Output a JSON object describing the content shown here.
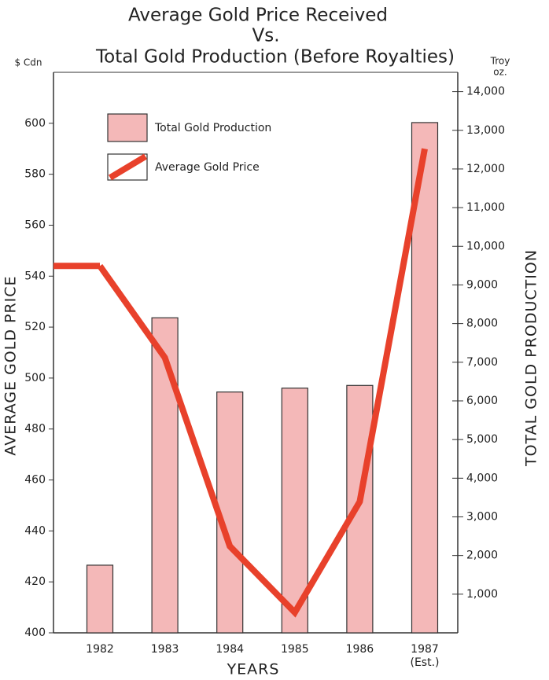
{
  "chart_data": {
    "type": "bar_line",
    "title": [
      "Average Gold Price Received",
      "Vs.",
      "Total Gold Production (Before Royalties)"
    ],
    "y_label": "AVERAGE GOLD PRICE",
    "y_unit": "$ Cdn",
    "y2_label": "TOTAL GOLD PRODUCTION",
    "y2_unit": [
      "Troy",
      "oz."
    ],
    "x_label": "YEARS",
    "categories": [
      "1982",
      "1983",
      "1984",
      "1985",
      "1986",
      "1987"
    ],
    "annotations": [
      {
        "category": 5,
        "text": "(Est.)"
      }
    ],
    "series": [
      {
        "name": "Total Gold Production",
        "kind": "bar",
        "axis": "y2",
        "color": "#f4b8b8",
        "values": [
          1750,
          8150,
          6230,
          6330,
          6400,
          13200
        ]
      },
      {
        "name": "Average Gold Price",
        "kind": "line",
        "axis": "y",
        "color": "#e8412b",
        "values": [
          544,
          508,
          434,
          408,
          451.5,
          590
        ]
      }
    ],
    "ylim": [
      400,
      620
    ],
    "yticks": [
      400,
      420,
      440,
      460,
      480,
      500,
      520,
      540,
      560,
      580,
      600
    ],
    "y2lim": [
      0,
      14500
    ],
    "y2ticks": [
      {
        "value": 1000,
        "label": "1,000"
      },
      {
        "value": 2000,
        "label": "2,000"
      },
      {
        "value": 3000,
        "label": "3,000"
      },
      {
        "value": 4000,
        "label": "4,000"
      },
      {
        "value": 5000,
        "label": "5,000"
      },
      {
        "value": 6000,
        "label": "6,000"
      },
      {
        "value": 7000,
        "label": "7,000"
      },
      {
        "value": 8000,
        "label": "8,000"
      },
      {
        "value": 9000,
        "label": "9,000"
      },
      {
        "value": 10000,
        "label": "10,000"
      },
      {
        "value": 11000,
        "label": "11,000"
      },
      {
        "value": 12000,
        "label": "12,000"
      },
      {
        "value": 13000,
        "label": "13,000"
      },
      {
        "value": 14000,
        "label": "14,000"
      }
    ],
    "grid": false
  }
}
